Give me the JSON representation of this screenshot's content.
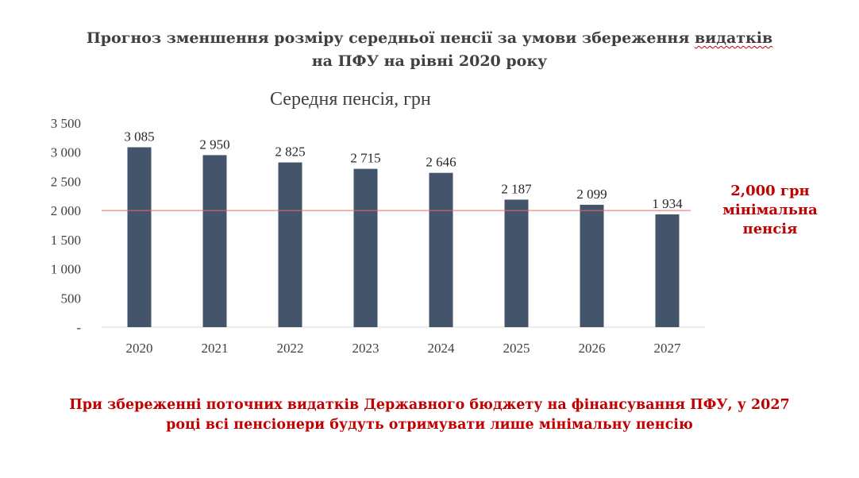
{
  "slide": {
    "title_line1_pre": "Прогноз зменшення розміру середньої пенсії за умови збереження ",
    "title_line1_wavy": "видатків",
    "title_line2": "на ПФУ на рівні 2020 року",
    "min_pension_label": [
      "2,000 грн",
      "мінімальна",
      "пенсія"
    ],
    "conclusion_line1": "При збереженні поточних видатків Державного бюджету на фінансування ПФУ, у 2027",
    "conclusion_line2": "році всі пенсіонери будуть отримувати лише мінімальну пенсію"
  },
  "colors": {
    "bar": "#44546a",
    "reference_line": "#e46c6c",
    "accent_red": "#c00000",
    "text": "#404040"
  },
  "chart_data": {
    "type": "bar",
    "title": "Середня пенсія, грн",
    "categories": [
      "2020",
      "2021",
      "2022",
      "2023",
      "2024",
      "2025",
      "2026",
      "2027"
    ],
    "values": [
      3085,
      2950,
      2825,
      2715,
      2646,
      2187,
      2099,
      1934
    ],
    "data_labels": [
      "3 085",
      "2 950",
      "2 825",
      "2 715",
      "2 646",
      "2 187",
      "2 099",
      "1 934"
    ],
    "ylim": [
      0,
      3500
    ],
    "y_ticks": [
      0,
      500,
      1000,
      1500,
      2000,
      2500,
      3000,
      3500
    ],
    "y_tick_labels": [
      "-",
      "500",
      "1 000",
      "1 500",
      "2 000",
      "2 500",
      "3 000",
      "3 500"
    ],
    "reference_line": {
      "value": 2000
    },
    "grid": false,
    "legend": "none"
  }
}
